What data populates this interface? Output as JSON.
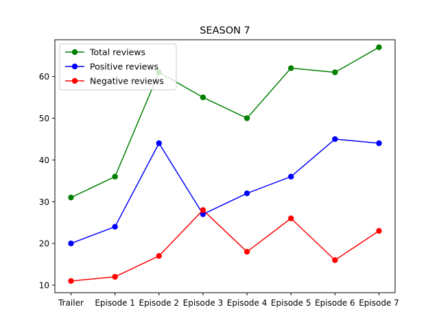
{
  "chart_data": {
    "type": "line",
    "title": "SEASON 7",
    "xlabel": "",
    "ylabel": "",
    "categories": [
      "Trailer",
      "Episode 1",
      "Episode 2",
      "Episode 3",
      "Episode 4",
      "Episode 5",
      "Episode 6",
      "Episode 7"
    ],
    "ylim": [
      8.2,
      68.8
    ],
    "yticks": [
      10,
      20,
      30,
      40,
      50,
      60
    ],
    "grid": false,
    "legend_position": "top-left",
    "series": [
      {
        "name": "Total reviews",
        "color": "#008000",
        "values": [
          31,
          36,
          61,
          55,
          50,
          62,
          61,
          67
        ]
      },
      {
        "name": "Positive reviews",
        "color": "#0000ff",
        "values": [
          20,
          24,
          44,
          27,
          32,
          36,
          45,
          44
        ]
      },
      {
        "name": "Negative reviews",
        "color": "#ff0000",
        "values": [
          11,
          12,
          17,
          28,
          18,
          26,
          16,
          23
        ]
      }
    ]
  }
}
